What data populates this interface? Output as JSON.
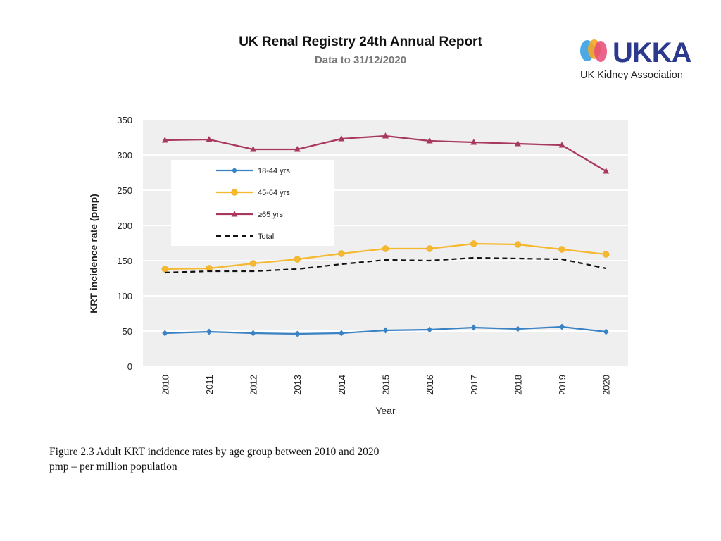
{
  "header": {
    "title": "UK Renal Registry 24th Annual Report",
    "subtitle": "Data to 31/12/2020"
  },
  "logo": {
    "text": "UKKA",
    "subtext": "UK Kidney Association",
    "colors": [
      "#f5a623",
      "#e8497a",
      "#3aa0e0",
      "#2b3a8c"
    ]
  },
  "caption": {
    "line1": "Figure 2.3 Adult KRT incidence rates by age group between 2010 and 2020",
    "line2": "pmp – per million population"
  },
  "chart_data": {
    "type": "line",
    "categories": [
      "2010",
      "2011",
      "2012",
      "2013",
      "2014",
      "2015",
      "2016",
      "2017",
      "2018",
      "2019",
      "2020"
    ],
    "series": [
      {
        "name": "18-44 yrs",
        "color": "#3a82c4",
        "marker": "diamond",
        "dash": false,
        "values": [
          47,
          49,
          47,
          46,
          47,
          51,
          52,
          55,
          53,
          56,
          49
        ]
      },
      {
        "name": "45-64 yrs",
        "color": "#f5b82e",
        "marker": "circle",
        "dash": false,
        "values": [
          138,
          139,
          146,
          152,
          160,
          167,
          167,
          174,
          173,
          166,
          159
        ]
      },
      {
        "name": "≥65 yrs",
        "color": "#a8385c",
        "marker": "triangle",
        "dash": false,
        "values": [
          321,
          322,
          308,
          308,
          323,
          327,
          320,
          318,
          316,
          314,
          277
        ]
      },
      {
        "name": "Total",
        "color": "#111111",
        "marker": "none",
        "dash": true,
        "values": [
          133,
          135,
          135,
          138,
          145,
          151,
          150,
          154,
          153,
          152,
          139
        ]
      }
    ],
    "title": "",
    "xlabel": "Year",
    "ylabel": "KRT incidence rate (pmp)",
    "ylim": [
      0,
      350
    ],
    "yticks": [
      "0",
      "50",
      "100",
      "150",
      "200",
      "250",
      "300",
      "350"
    ],
    "grid": true,
    "legend": "upper-left"
  }
}
